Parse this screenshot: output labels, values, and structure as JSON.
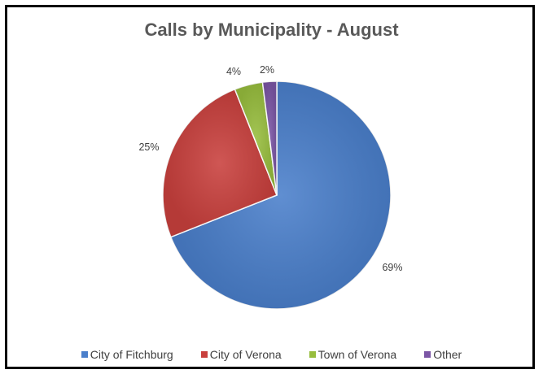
{
  "chart_data": {
    "type": "pie",
    "title": "Calls by Municipality - August",
    "categories": [
      "City of Fitchburg",
      "City of Verona",
      "Town of Verona",
      "Other"
    ],
    "values": [
      69,
      25,
      4,
      2
    ],
    "data_labels": [
      "69%",
      "25%",
      "4%",
      "2%"
    ],
    "colors": [
      "#4A7FCB",
      "#C9403D",
      "#97BD3D",
      "#7B56A5"
    ],
    "legend_placement": "bottom"
  }
}
